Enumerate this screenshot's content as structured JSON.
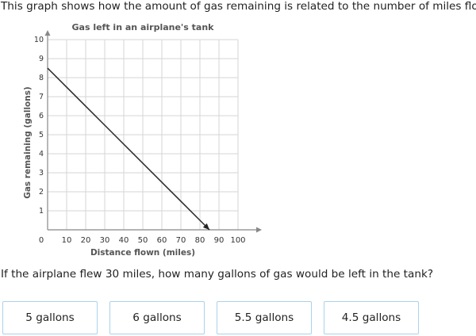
{
  "prompt": {
    "intro": "This graph shows how the amount of gas remaining is related to the number of miles flown.",
    "question": "If the airplane flew 30 miles, how many gallons of gas would be left in the tank?"
  },
  "choices": [
    {
      "label": "5 gallons"
    },
    {
      "label": "6 gallons"
    },
    {
      "label": "5.5 gallons"
    },
    {
      "label": "4.5 gallons"
    }
  ],
  "chart_data": {
    "type": "line",
    "title": "Gas left in an airplane's tank",
    "xlabel": "Distance flown (miles)",
    "ylabel": "Gas remaining (gallons)",
    "xlim": [
      0,
      100
    ],
    "ylim": [
      0,
      10
    ],
    "x_ticks": [
      "10",
      "20",
      "30",
      "40",
      "50",
      "60",
      "70",
      "80",
      "90",
      "100"
    ],
    "y_ticks": [
      "1",
      "2",
      "3",
      "4",
      "5",
      "6",
      "7",
      "8",
      "9",
      "10"
    ],
    "origin_label": "0",
    "grid": true,
    "series": [
      {
        "x": [
          0,
          85
        ],
        "y": [
          8.5,
          0
        ]
      }
    ],
    "colors": {
      "grid": "#d6d6d6",
      "axis": "#888888",
      "line": "#222222",
      "title": "#555555"
    }
  }
}
